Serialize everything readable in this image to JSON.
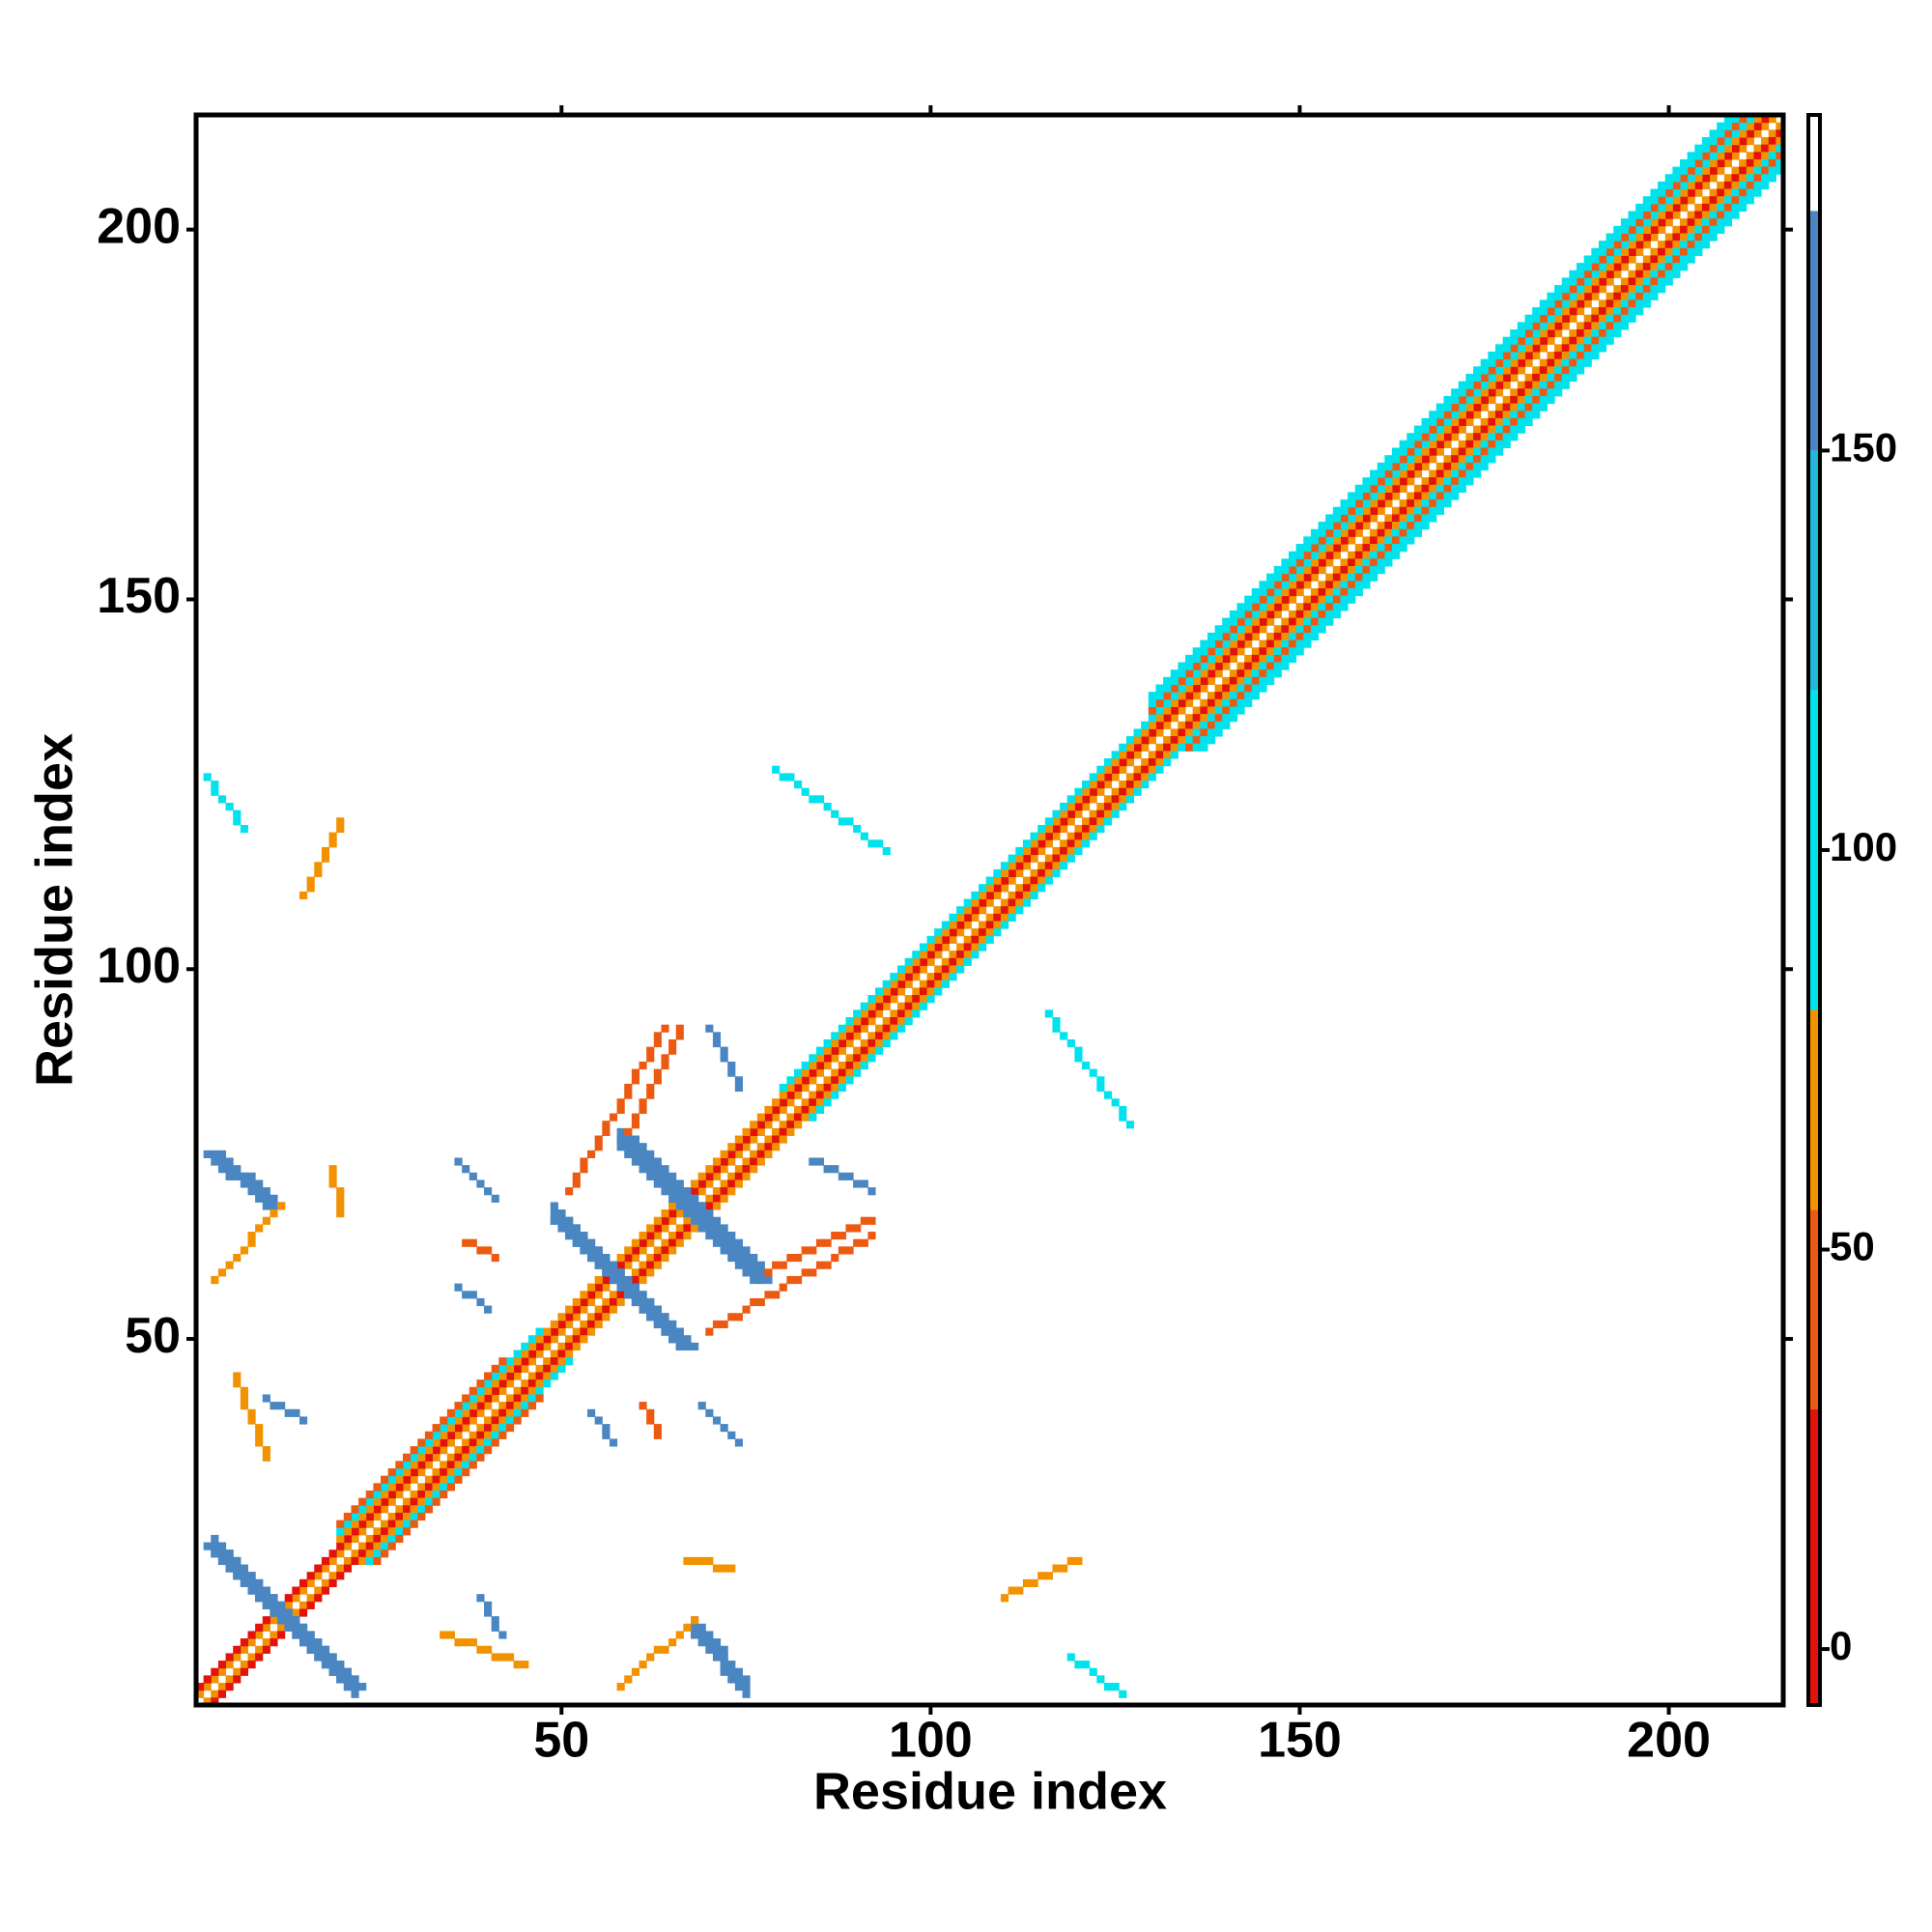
{
  "chart_data": {
    "type": "heatmap",
    "x_label": "Residue index",
    "y_label": "Residue index",
    "xlim": [
      0.5,
      215.5
    ],
    "ylim": [
      0.5,
      215.5
    ],
    "xticks": [
      50,
      100,
      150,
      200
    ],
    "yticks": [
      50,
      100,
      150,
      200
    ],
    "symmetric": true,
    "colorbar": {
      "lim": [
        -7,
        192
      ],
      "ticks": [
        0,
        50,
        100,
        150
      ],
      "bounds": [
        -7,
        30,
        55,
        80,
        120,
        150,
        180,
        192
      ],
      "colors": [
        "#e3120b",
        "#ec5a12",
        "#f39200",
        "#00e3ed",
        "#22b6da",
        "#4a86c2",
        "#ffffff"
      ]
    },
    "features": [
      {
        "from": [
          1,
          2
        ],
        "to": [
          214,
          215
        ],
        "value": 65,
        "width": 1
      },
      {
        "from": [
          1,
          3
        ],
        "to": [
          213,
          215
        ],
        "value": 10,
        "width": 1
      },
      {
        "from": [
          20,
          23
        ],
        "to": [
          212,
          215
        ],
        "value": 65,
        "width": 1
      },
      {
        "from": [
          20,
          24
        ],
        "to": [
          47,
          51
        ],
        "value": 100,
        "width": 1
      },
      {
        "from": [
          80,
          84
        ],
        "to": [
          211,
          215
        ],
        "value": 100,
        "width": 1
      },
      {
        "from": [
          20,
          25
        ],
        "to": [
          42,
          47
        ],
        "value": 40,
        "width": 1
      },
      {
        "from": [
          130,
          135
        ],
        "to": [
          210,
          215
        ],
        "value": 40,
        "width": 1
      },
      {
        "from": [
          130,
          136
        ],
        "to": [
          209,
          215
        ],
        "value": 100,
        "width": 1
      },
      {
        "from": [
          130,
          137
        ],
        "to": [
          208,
          215
        ],
        "value": 100,
        "width": 1
      },
      {
        "from": [
          2,
          75
        ],
        "to": [
          10,
          68
        ],
        "value": 160,
        "width": 3
      },
      {
        "from": [
          2,
          22
        ],
        "to": [
          21,
          3
        ],
        "value": 160,
        "width": 3
      },
      {
        "from": [
          49,
          66
        ],
        "to": [
          66,
          49
        ],
        "value": 160,
        "width": 3
      },
      {
        "from": [
          58,
          77
        ],
        "to": [
          76,
          58
        ],
        "value": 160,
        "width": 3
      },
      {
        "from": [
          3,
          58
        ],
        "to": [
          12,
          68
        ],
        "value": 65,
        "width": 1
      },
      {
        "from": [
          78,
          59
        ],
        "to": [
          92,
          66
        ],
        "value": 40,
        "width": 1
      },
      {
        "from": [
          79,
          127
        ],
        "to": [
          94,
          116
        ],
        "value": 100,
        "width": 1
      },
      {
        "from": [
          15,
          110
        ],
        "to": [
          20,
          120
        ],
        "value": 65,
        "width": 1
      },
      {
        "from": [
          2,
          126
        ],
        "to": [
          7,
          119
        ],
        "value": 100,
        "width": 1
      },
      {
        "from": [
          51,
          70
        ],
        "to": [
          64,
          92
        ],
        "value": 40,
        "width": 1
      },
      {
        "from": [
          70,
          92
        ],
        "to": [
          74,
          84
        ],
        "value": 160,
        "width": 1
      },
      {
        "from": [
          36,
          74
        ],
        "to": [
          41,
          69
        ],
        "value": 160,
        "width": 1
      },
      {
        "from": [
          6,
          45
        ],
        "to": [
          10,
          34
        ],
        "value": 65,
        "width": 1
      },
      {
        "from": [
          10,
          42
        ],
        "to": [
          15,
          39
        ],
        "value": 160,
        "width": 1
      },
      {
        "from": [
          54,
          40
        ],
        "to": [
          57,
          36
        ],
        "value": 160,
        "width": 1
      },
      {
        "from": [
          61,
          41
        ],
        "to": [
          63,
          37
        ],
        "value": 40,
        "width": 1
      },
      {
        "from": [
          67,
          20
        ],
        "to": [
          73,
          19
        ],
        "value": 65,
        "width": 1
      }
    ]
  }
}
